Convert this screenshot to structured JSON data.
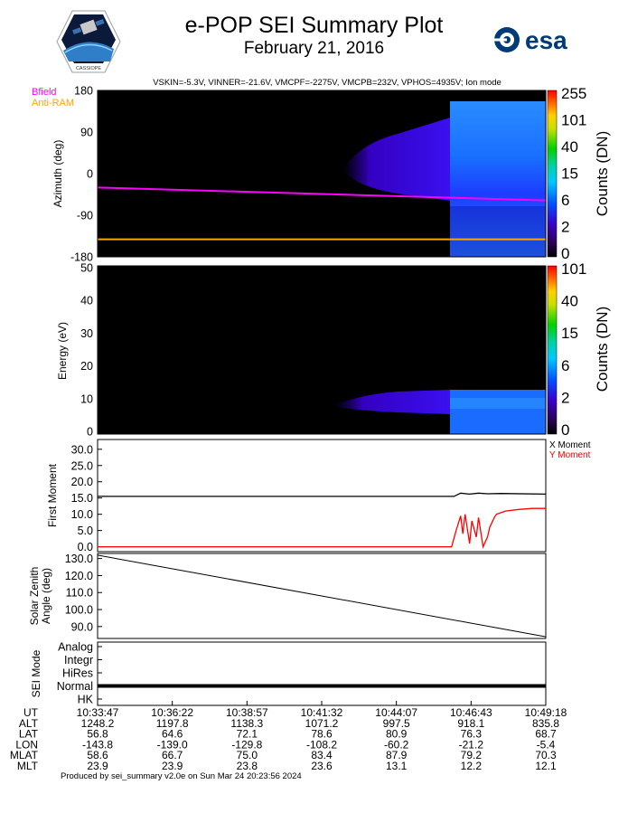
{
  "header": {
    "title": "e-POP SEI Summary Plot",
    "subtitle": "February 21, 2016",
    "params": "VSKIN=-5.3V, VINNER=-21.6V, VMCPF=-2275V, VMCPB=232V, VPHOS=4935V; Ion mode",
    "left_logo_text": "CASSIOPE",
    "right_logo_text": "esa"
  },
  "footer": "Produced by sei_summary v2.0e on Sun Mar 24 20:23:56 2024",
  "chart_data": [
    {
      "type": "heatmap",
      "panel": "azimuth",
      "ylabel": "Azimuth (deg)",
      "ylim": [
        -180,
        180
      ],
      "yticks": [
        "180",
        "90",
        "0",
        "-90",
        "-180"
      ],
      "colorbar_label": "Counts (DN)",
      "colorbar_ticks": [
        "255",
        "101",
        "40",
        "15",
        "6",
        "2",
        "0"
      ],
      "legend": [
        {
          "name": "Bfield",
          "color": "#ff00ff"
        },
        {
          "name": "Anti-RAM",
          "color": "#ffa500"
        }
      ],
      "bfield_line": {
        "x": [
          0,
          1
        ],
        "y": [
          -30,
          -58
        ]
      },
      "antiram_line": {
        "x": [
          0,
          1
        ],
        "y": [
          -142,
          -142
        ]
      }
    },
    {
      "type": "heatmap",
      "panel": "energy",
      "ylabel": "Energy (eV)",
      "ylim": [
        0,
        50
      ],
      "yticks": [
        "50",
        "40",
        "30",
        "20",
        "10",
        "0"
      ],
      "colorbar_label": "Counts (DN)",
      "colorbar_ticks": [
        "101",
        "40",
        "15",
        "6",
        "2",
        "0"
      ]
    },
    {
      "type": "line",
      "panel": "first_moment",
      "ylabel": "First Moment",
      "ylim": [
        -1.5,
        33
      ],
      "yticks": [
        "30.0",
        "25.0",
        "20.0",
        "15.0",
        "10.0",
        "5.0",
        "0.0"
      ],
      "series": [
        {
          "name": "X Moment",
          "color": "#000000",
          "x": [
            0,
            0.795,
            0.81,
            0.83,
            0.85,
            0.87,
            0.9,
            1.0
          ],
          "y": [
            15.5,
            15.5,
            16.5,
            16.2,
            16.5,
            16.3,
            16.4,
            16.2
          ]
        },
        {
          "name": "Y Moment",
          "color": "#ff0000",
          "x": [
            0,
            0.79,
            0.8,
            0.81,
            0.815,
            0.82,
            0.83,
            0.835,
            0.845,
            0.85,
            0.86,
            0.87,
            0.875,
            0.885,
            0.89,
            0.9,
            0.91,
            0.94,
            0.97,
            1.0
          ],
          "y": [
            0,
            0,
            5,
            9.5,
            4,
            10,
            1,
            8,
            3,
            9,
            0,
            3,
            6,
            9,
            10,
            10.5,
            11,
            11.5,
            11.8,
            11.8
          ]
        }
      ]
    },
    {
      "type": "line",
      "panel": "solar_zenith",
      "ylabel": "Solar Zenith Angle (deg)",
      "ylim": [
        83,
        133
      ],
      "yticks": [
        "130.0",
        "120.0",
        "110.0",
        "100.0",
        "90.0"
      ],
      "series": [
        {
          "name": "",
          "color": "#000000",
          "x": [
            0,
            1
          ],
          "y": [
            132,
            84
          ]
        }
      ]
    },
    {
      "type": "line",
      "panel": "sei_mode",
      "ylabel": "SEI Mode",
      "categories": [
        "Analog",
        "Integr",
        "HiRes",
        "Normal",
        "HK"
      ],
      "series": [
        {
          "name": "",
          "color": "#000000",
          "x": [
            0,
            1
          ],
          "y": [
            "Normal",
            "Normal"
          ]
        }
      ]
    }
  ],
  "time_table": {
    "row_labels": [
      "UT",
      "ALT",
      "LAT",
      "LON",
      "MLAT",
      "MLT"
    ],
    "columns": [
      [
        "10:33:47",
        "1248.2",
        "56.8",
        "-143.8",
        "58.6",
        "23.9"
      ],
      [
        "10:36:22",
        "1197.8",
        "64.6",
        "-139.0",
        "66.7",
        "23.9"
      ],
      [
        "10:38:57",
        "1138.3",
        "72.1",
        "-129.8",
        "75.0",
        "23.8"
      ],
      [
        "10:41:32",
        "1071.2",
        "78.6",
        "-108.2",
        "83.4",
        "23.6"
      ],
      [
        "10:44:07",
        "997.5",
        "80.9",
        "-60.2",
        "87.9",
        "13.1"
      ],
      [
        "10:46:43",
        "918.1",
        "76.3",
        "-21.2",
        "79.2",
        "12.2"
      ],
      [
        "10:49:18",
        "835.8",
        "68.7",
        "-5.4",
        "70.3",
        "12.1"
      ]
    ]
  }
}
